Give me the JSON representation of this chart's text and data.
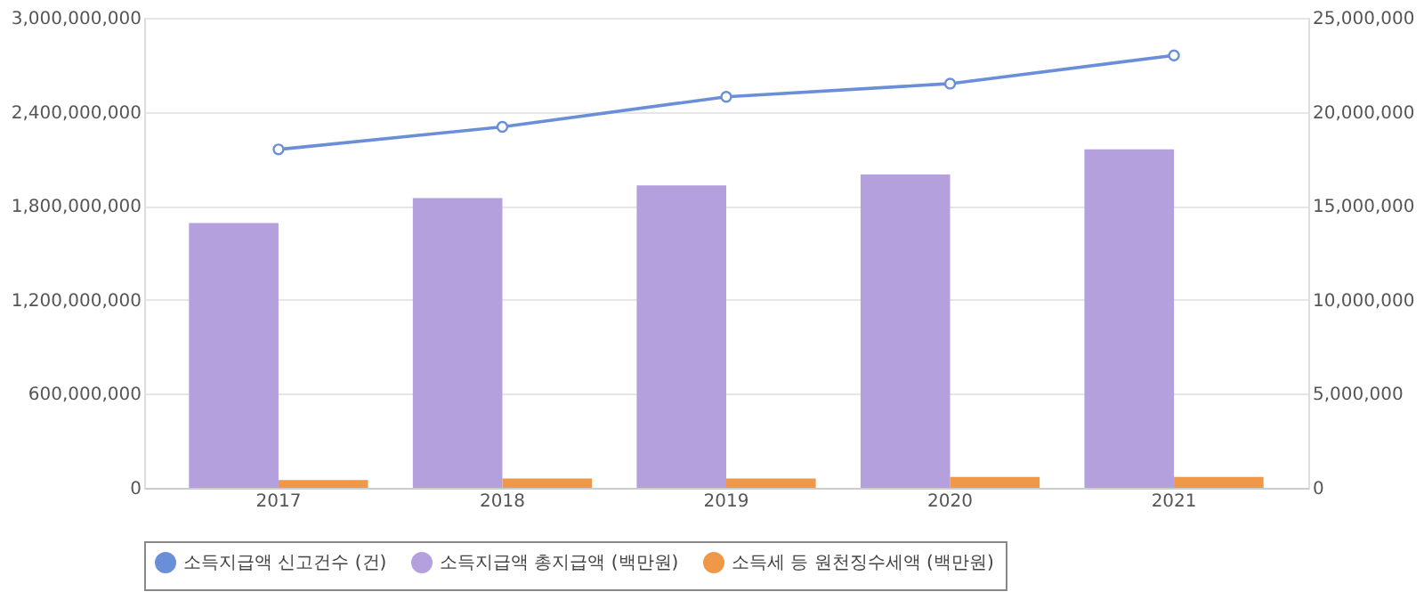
{
  "chart_data": {
    "type": "bar",
    "categories": [
      "2017",
      "2018",
      "2019",
      "2020",
      "2021"
    ],
    "series": [
      {
        "name": "소득지급액 신고건수 (건)",
        "type": "line",
        "axis": "y2",
        "color": "#6a8fd8",
        "marker": "circle",
        "values": [
          18000000,
          19200000,
          20800000,
          21500000,
          23000000
        ]
      },
      {
        "name": "소득지급액 총지급액 (백만원)",
        "color": "#b3a0dd",
        "values": [
          1690000000,
          1850000000,
          1930000000,
          2000000000,
          2160000000
        ]
      },
      {
        "name": "소득세 등 원천징수세액 (백만원)",
        "color": "#f0984a",
        "values": [
          50000000,
          60000000,
          60000000,
          70000000,
          70000000
        ]
      }
    ],
    "ylim": [
      0,
      3000000000
    ],
    "yticks": [
      0,
      {
        "value": 600000000,
        "label": "600,000,000"
      },
      {
        "value": 1200000000,
        "label": "1,200,000,000"
      },
      {
        "value": 1800000000,
        "label": "1,800,000,000"
      },
      {
        "value": 2400000000,
        "label": "2,400,000,000"
      },
      {
        "value": 3000000000,
        "label": "3,000,000,000"
      }
    ],
    "y2lim": [
      0,
      25000000
    ],
    "y2ticks": [
      0,
      {
        "value": 5000000,
        "label": "5,000,000"
      },
      {
        "value": 10000000,
        "label": "10,000,000"
      },
      {
        "value": 15000000,
        "label": "15,000,000"
      },
      {
        "value": 20000000,
        "label": "20,000,000"
      },
      {
        "value": 25000000,
        "label": "25,000,000"
      }
    ],
    "grid": "y",
    "legend": "bottom"
  }
}
